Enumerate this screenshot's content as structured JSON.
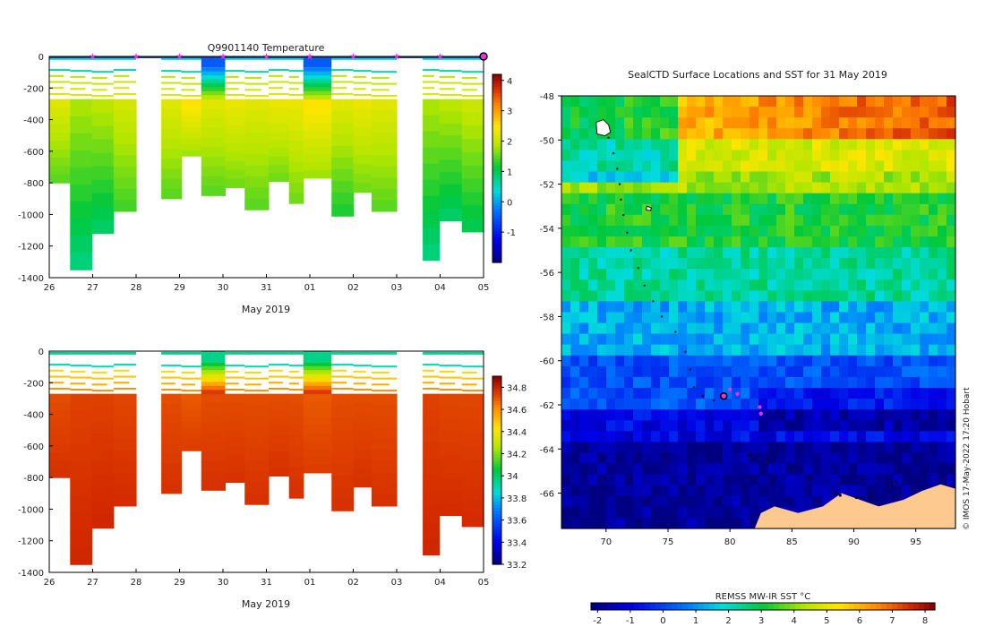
{
  "figure": {
    "background": "#ffffff"
  },
  "chart_data": [
    {
      "id": "temperature",
      "type": "heatmap",
      "title": "Q9901140  Temperature",
      "xlabel": "May 2019",
      "ylabel": "",
      "x_tick_labels": [
        "26",
        "27",
        "28",
        "29",
        "30",
        "31",
        "01",
        "02",
        "03",
        "04",
        "05"
      ],
      "xlim_days": [
        0,
        10
      ],
      "ylim": [
        -1400,
        0
      ],
      "y_ticks": [
        0,
        -200,
        -400,
        -600,
        -800,
        -1000,
        -1200,
        -1400
      ],
      "clim": [
        -2,
        4.2
      ],
      "colorbar_ticks": [
        4,
        3,
        2,
        1,
        0,
        -1
      ],
      "profile_markers_days": [
        1,
        2,
        3,
        4,
        5,
        6,
        7,
        8,
        9
      ],
      "last_profile_day": 10,
      "colors": {
        "marker": "#e533e5",
        "surface_line": "#1a3a8a"
      },
      "profiles": [
        {
          "day0": 0.0,
          "day1": 0.48,
          "bottom": -800,
          "value": 1.6
        },
        {
          "day0": 0.48,
          "day1": 0.98,
          "bottom": -1350,
          "value": 1.2
        },
        {
          "day0": 0.98,
          "day1": 1.48,
          "bottom": -1120,
          "value": 1.3
        },
        {
          "day0": 1.48,
          "day1": 2.0,
          "bottom": -980,
          "value": 1.5
        },
        {
          "day0": 2.58,
          "day1": 3.04,
          "bottom": -900,
          "value": 1.6
        },
        {
          "day0": 3.04,
          "day1": 3.5,
          "bottom": -630,
          "value": 1.9
        },
        {
          "day0": 3.5,
          "day1": 4.05,
          "bottom": -880,
          "value": 1.6
        },
        {
          "day0": 4.05,
          "day1": 4.5,
          "bottom": -830,
          "value": 1.7
        },
        {
          "day0": 4.5,
          "day1": 5.05,
          "bottom": -970,
          "value": 1.6
        },
        {
          "day0": 5.05,
          "day1": 5.52,
          "bottom": -790,
          "value": 1.7
        },
        {
          "day0": 5.52,
          "day1": 5.85,
          "bottom": -930,
          "value": 1.7
        },
        {
          "day0": 5.85,
          "day1": 6.5,
          "bottom": -770,
          "value": 1.9
        },
        {
          "day0": 6.5,
          "day1": 7.0,
          "bottom": -1010,
          "value": 1.6
        },
        {
          "day0": 7.0,
          "day1": 7.42,
          "bottom": -860,
          "value": 1.7
        },
        {
          "day0": 7.42,
          "day1": 8.0,
          "bottom": -980,
          "value": 1.6
        },
        {
          "day0": 8.6,
          "day1": 8.98,
          "bottom": -1290,
          "value": 1.2
        },
        {
          "day0": 8.98,
          "day1": 9.5,
          "bottom": -1040,
          "value": 1.3
        },
        {
          "day0": 9.5,
          "day1": 10.0,
          "bottom": -1110,
          "value": 1.4
        }
      ],
      "surface_patches": [
        {
          "day0": 3.5,
          "day1": 4.05,
          "top": 0,
          "bottom": -70,
          "value": -0.5
        },
        {
          "day0": 5.85,
          "day1": 6.5,
          "top": 0,
          "bottom": -70,
          "value": -0.5
        }
      ]
    },
    {
      "id": "salinity",
      "type": "heatmap",
      "title": "",
      "xlabel": "May 2019",
      "x_tick_labels": [
        "26",
        "27",
        "28",
        "29",
        "30",
        "31",
        "01",
        "02",
        "03",
        "04",
        "05"
      ],
      "xlim_days": [
        0,
        10
      ],
      "ylim": [
        -1400,
        0
      ],
      "y_ticks": [
        0,
        -200,
        -400,
        -600,
        -800,
        -1000,
        -1200,
        -1400
      ],
      "clim": [
        33.2,
        34.9
      ],
      "colorbar_ticks": [
        34.8,
        34.6,
        34.4,
        34.2,
        34,
        33.8,
        33.6,
        33.4,
        33.2
      ],
      "profiles": [
        {
          "day0": 0.0,
          "day1": 0.48,
          "bottom": -800,
          "value": 34.72
        },
        {
          "day0": 0.48,
          "day1": 0.98,
          "bottom": -1350,
          "value": 34.74
        },
        {
          "day0": 0.98,
          "day1": 1.48,
          "bottom": -1120,
          "value": 34.74
        },
        {
          "day0": 1.48,
          "day1": 2.0,
          "bottom": -980,
          "value": 34.73
        },
        {
          "day0": 2.58,
          "day1": 3.04,
          "bottom": -900,
          "value": 34.72
        },
        {
          "day0": 3.04,
          "day1": 3.5,
          "bottom": -630,
          "value": 34.7
        },
        {
          "day0": 3.5,
          "day1": 4.05,
          "bottom": -880,
          "value": 34.72
        },
        {
          "day0": 4.05,
          "day1": 4.5,
          "bottom": -830,
          "value": 34.72
        },
        {
          "day0": 4.5,
          "day1": 5.05,
          "bottom": -970,
          "value": 34.72
        },
        {
          "day0": 5.05,
          "day1": 5.52,
          "bottom": -790,
          "value": 34.72
        },
        {
          "day0": 5.52,
          "day1": 5.85,
          "bottom": -930,
          "value": 34.72
        },
        {
          "day0": 5.85,
          "day1": 6.5,
          "bottom": -770,
          "value": 34.7
        },
        {
          "day0": 6.5,
          "day1": 7.0,
          "bottom": -1010,
          "value": 34.72
        },
        {
          "day0": 7.0,
          "day1": 7.42,
          "bottom": -860,
          "value": 34.72
        },
        {
          "day0": 7.42,
          "day1": 8.0,
          "bottom": -980,
          "value": 34.72
        },
        {
          "day0": 8.6,
          "day1": 8.98,
          "bottom": -1290,
          "value": 34.74
        },
        {
          "day0": 8.98,
          "day1": 9.5,
          "bottom": -1040,
          "value": 34.73
        },
        {
          "day0": 9.5,
          "day1": 10.0,
          "bottom": -1110,
          "value": 34.73
        }
      ],
      "surface_patches": [
        {
          "day0": 3.5,
          "day1": 4.05,
          "top": 0,
          "bottom": -70,
          "value": 33.95
        },
        {
          "day0": 5.85,
          "day1": 6.5,
          "top": 0,
          "bottom": -70,
          "value": 33.95
        }
      ]
    },
    {
      "id": "sst_map",
      "type": "heatmap",
      "title": "SealCTD Surface Locations and SST for 31 May 2019",
      "xlim": [
        66.4,
        98.2
      ],
      "ylim": [
        -67.6,
        -48
      ],
      "x_ticks": [
        70,
        75,
        80,
        85,
        90,
        95
      ],
      "y_ticks": [
        -48,
        -50,
        -52,
        -54,
        -56,
        -58,
        -60,
        -62,
        -64,
        -66
      ],
      "colorbar_label": "REMSS MW-IR SST °C",
      "colorbar_ticks": [
        -2,
        -1,
        0,
        1,
        2,
        3,
        4,
        5,
        6,
        7,
        8
      ],
      "clim": [
        -2.2,
        8.3
      ],
      "credit": "© IMOS 17-May-2022 17:20 Hobart",
      "colors": {
        "land": "#fdc98f",
        "track": "#111111",
        "recent": "#e533e5"
      },
      "sst_zones": [
        {
          "lat_north": -48,
          "lat_south": -52,
          "value": 5.8
        },
        {
          "lat_north": -52,
          "lat_south": -55.5,
          "value": 3.0
        },
        {
          "lat_north": -55.5,
          "lat_south": -58.5,
          "value": 2.0
        },
        {
          "lat_north": -58.5,
          "lat_south": -61,
          "value": 1.0
        },
        {
          "lat_north": -61,
          "lat_south": -63.5,
          "value": -0.6
        },
        {
          "lat_north": -63.5,
          "lat_south": -67.6,
          "value": -1.8
        }
      ],
      "track": [
        [
          70.2,
          -49.9
        ],
        [
          70.6,
          -50.6
        ],
        [
          70.9,
          -51.3
        ],
        [
          71.1,
          -52.0
        ],
        [
          71.2,
          -52.7
        ],
        [
          71.4,
          -53.4
        ],
        [
          71.7,
          -54.2
        ],
        [
          72.0,
          -55.0
        ],
        [
          72.6,
          -55.8
        ],
        [
          73.1,
          -56.6
        ],
        [
          73.8,
          -57.3
        ],
        [
          74.5,
          -58.0
        ],
        [
          75.6,
          -58.7
        ],
        [
          76.4,
          -59.6
        ],
        [
          76.8,
          -60.4
        ],
        [
          77.1,
          -61.2
        ],
        [
          77.8,
          -61.6
        ],
        [
          78.7,
          -61.8
        ],
        [
          79.5,
          -61.6
        ]
      ],
      "recent_positions": [
        [
          80.0,
          -61.3
        ],
        [
          80.6,
          -61.5
        ],
        [
          82.4,
          -62.1
        ],
        [
          82.5,
          -62.4
        ]
      ],
      "latest_position": [
        79.5,
        -61.6
      ]
    }
  ]
}
